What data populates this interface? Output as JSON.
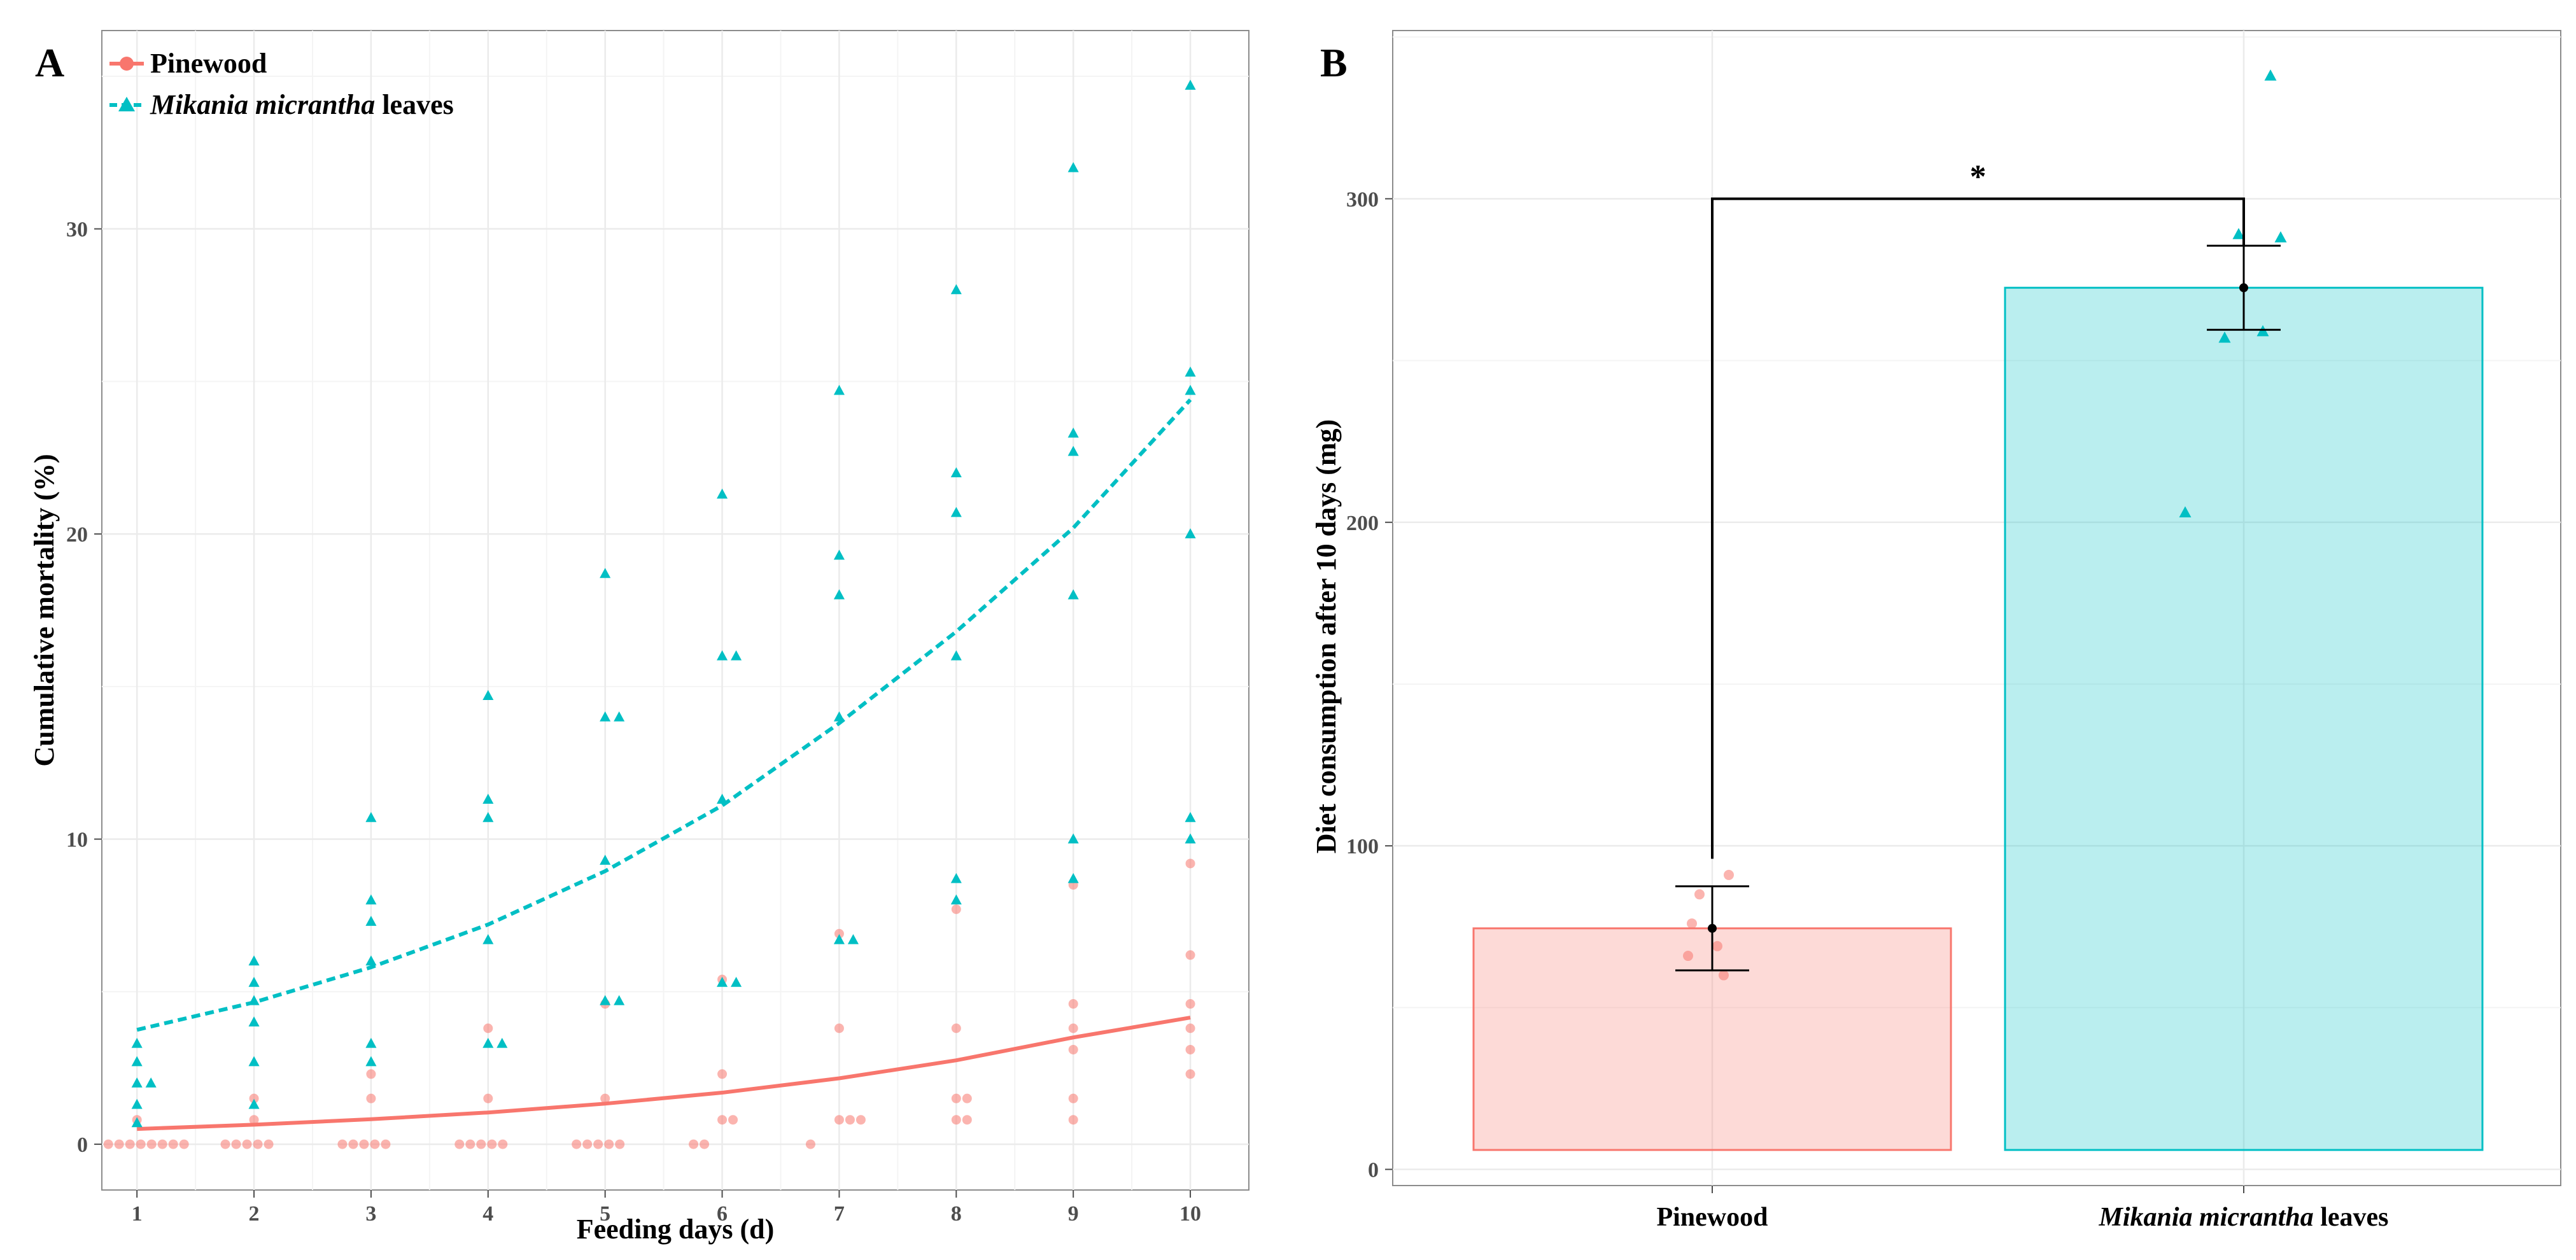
{
  "chart_data": [
    {
      "panel": "A",
      "type": "scatter",
      "xlabel": "Feeding days (d)",
      "ylabel": "Cumulative mortality (%)",
      "xlim": [
        0.7,
        10.5
      ],
      "ylim": [
        -1.5,
        36.5
      ],
      "xticks": [
        1,
        2,
        3,
        4,
        5,
        6,
        7,
        8,
        9,
        10
      ],
      "yticks": [
        0,
        10,
        20,
        30
      ],
      "grid": true,
      "legend_position": "top-left",
      "series": [
        {
          "name": "Pinewood",
          "color": "#F8766D",
          "marker": "circle",
          "trend": "solid",
          "trend_points": [
            [
              1,
              0.5
            ],
            [
              2,
              0.64
            ],
            [
              3,
              0.82
            ],
            [
              4,
              1.04
            ],
            [
              5,
              1.33
            ],
            [
              6,
              1.69
            ],
            [
              7,
              2.16
            ],
            [
              8,
              2.75
            ],
            [
              9,
              3.5
            ],
            [
              10,
              4.15
            ]
          ],
          "points": [
            [
              1,
              0
            ],
            [
              1,
              0
            ],
            [
              1,
              0
            ],
            [
              1,
              0
            ],
            [
              1,
              0
            ],
            [
              1,
              0
            ],
            [
              1,
              0
            ],
            [
              1,
              0
            ],
            [
              1,
              0.8
            ],
            [
              2,
              0
            ],
            [
              2,
              0
            ],
            [
              2,
              0
            ],
            [
              2,
              0
            ],
            [
              2,
              0
            ],
            [
              2,
              0.8
            ],
            [
              2,
              1.5
            ],
            [
              3,
              0
            ],
            [
              3,
              0
            ],
            [
              3,
              0
            ],
            [
              3,
              0
            ],
            [
              3,
              0
            ],
            [
              3,
              1.5
            ],
            [
              3,
              2.3
            ],
            [
              4,
              0
            ],
            [
              4,
              0
            ],
            [
              4,
              0
            ],
            [
              4,
              0
            ],
            [
              4,
              0
            ],
            [
              4,
              1.5
            ],
            [
              4,
              3.8
            ],
            [
              5,
              0
            ],
            [
              5,
              0
            ],
            [
              5,
              0
            ],
            [
              5,
              0
            ],
            [
              5,
              0
            ],
            [
              5,
              1.5
            ],
            [
              5,
              4.6
            ],
            [
              6,
              0
            ],
            [
              6,
              0
            ],
            [
              6,
              0.8
            ],
            [
              6,
              0.8
            ],
            [
              6,
              2.3
            ],
            [
              6,
              5.4
            ],
            [
              7,
              0
            ],
            [
              7,
              0.8
            ],
            [
              7,
              0.8
            ],
            [
              7,
              0.8
            ],
            [
              7,
              3.8
            ],
            [
              7,
              6.9
            ],
            [
              8,
              0.8
            ],
            [
              8,
              0.8
            ],
            [
              8,
              1.5
            ],
            [
              8,
              1.5
            ],
            [
              8,
              3.8
            ],
            [
              8,
              7.7
            ],
            [
              9,
              0.8
            ],
            [
              9,
              1.5
            ],
            [
              9,
              3.1
            ],
            [
              9,
              3.8
            ],
            [
              9,
              4.6
            ],
            [
              9,
              8.5
            ],
            [
              10,
              2.3
            ],
            [
              10,
              3.1
            ],
            [
              10,
              3.8
            ],
            [
              10,
              4.6
            ],
            [
              10,
              6.2
            ],
            [
              10,
              9.2
            ]
          ]
        },
        {
          "name": "Mikania micrantha leaves",
          "name_italic_part": "Mikania micrantha",
          "name_suffix": " leaves",
          "color": "#00BFC4",
          "marker": "triangle",
          "trend": "dashed",
          "trend_points": [
            [
              1,
              3.75
            ],
            [
              2,
              4.65
            ],
            [
              3,
              5.8
            ],
            [
              4,
              7.2
            ],
            [
              5,
              8.95
            ],
            [
              6,
              11.1
            ],
            [
              7,
              13.8
            ],
            [
              8,
              16.8
            ],
            [
              9,
              20.2
            ],
            [
              10,
              24.4
            ]
          ],
          "points": [
            [
              1,
              0.7
            ],
            [
              1,
              1.3
            ],
            [
              1,
              2.0
            ],
            [
              1,
              2.0
            ],
            [
              1,
              2.7
            ],
            [
              1,
              3.3
            ],
            [
              2,
              1.3
            ],
            [
              2,
              2.7
            ],
            [
              2,
              4.0
            ],
            [
              2,
              4.7
            ],
            [
              2,
              5.3
            ],
            [
              2,
              6.0
            ],
            [
              3,
              2.7
            ],
            [
              3,
              3.3
            ],
            [
              3,
              6.0
            ],
            [
              3,
              7.3
            ],
            [
              3,
              8.0
            ],
            [
              3,
              10.7
            ],
            [
              4,
              3.3
            ],
            [
              4,
              3.3
            ],
            [
              4,
              6.7
            ],
            [
              4,
              10.7
            ],
            [
              4,
              11.3
            ],
            [
              4,
              14.7
            ],
            [
              5,
              4.7
            ],
            [
              5,
              4.7
            ],
            [
              5,
              9.3
            ],
            [
              5,
              14.0
            ],
            [
              5,
              14.0
            ],
            [
              5,
              18.7
            ],
            [
              6,
              5.3
            ],
            [
              6,
              5.3
            ],
            [
              6,
              11.3
            ],
            [
              6,
              16.0
            ],
            [
              6,
              16.0
            ],
            [
              6,
              21.3
            ],
            [
              7,
              6.7
            ],
            [
              7,
              6.7
            ],
            [
              7,
              14.0
            ],
            [
              7,
              18.0
            ],
            [
              7,
              19.3
            ],
            [
              7,
              24.7
            ],
            [
              8,
              8.0
            ],
            [
              8,
              8.7
            ],
            [
              8,
              16.0
            ],
            [
              8,
              20.7
            ],
            [
              8,
              22.0
            ],
            [
              8,
              28.0
            ],
            [
              9,
              8.7
            ],
            [
              9,
              10.0
            ],
            [
              9,
              18.0
            ],
            [
              9,
              22.7
            ],
            [
              9,
              23.3
            ],
            [
              9,
              32.0
            ],
            [
              10,
              10.0
            ],
            [
              10,
              10.7
            ],
            [
              10,
              20.0
            ],
            [
              10,
              24.7
            ],
            [
              10,
              25.3
            ],
            [
              10,
              34.7
            ]
          ]
        }
      ]
    },
    {
      "panel": "B",
      "type": "bar",
      "xlabel": "",
      "ylabel": "Diet consumption after 10 days (mg)",
      "ylim": [
        -5,
        352
      ],
      "yticks": [
        0,
        100,
        200,
        300
      ],
      "grid": true,
      "categories": [
        "Pinewood",
        "Mikania micrantha leaves"
      ],
      "category_italic_part": [
        "",
        "Mikania micrantha"
      ],
      "category_suffix": [
        "",
        " leaves"
      ],
      "bar_base": 6,
      "values": [
        74.5,
        272.5
      ],
      "error": [
        13,
        13
      ],
      "bar_colors": [
        "#F8766D",
        "#00BFC4"
      ],
      "points": [
        [
          60,
          66,
          69,
          76,
          85,
          91
        ],
        [
          203,
          257,
          259,
          288,
          289,
          338
        ]
      ],
      "significance": {
        "label": "*",
        "bracket_y": 300,
        "bracket_start": 96
      }
    }
  ]
}
